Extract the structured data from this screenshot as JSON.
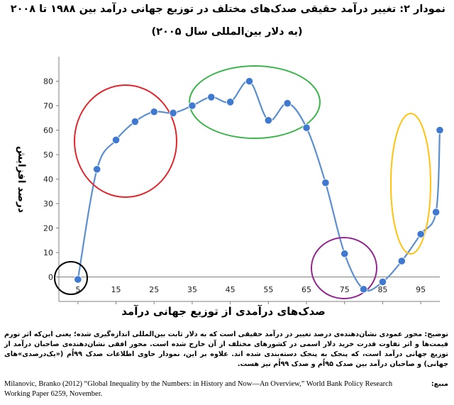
{
  "header": {
    "title": "نمودار ۲: تغییر درآمد حقیقی صدک‌های مختلف در توزیع جهانی درآمد بین ۱۹۸۸ تا ۲۰۰۸",
    "subtitle": "(به دلار بین‌المللی سال ۲۰۰۵)"
  },
  "chart_data": {
    "type": "line",
    "xlabel": "صدک‌های درآمدی از توزیع جهانی درآمد",
    "ylabel": "درصد افزایش",
    "xlim": [
      0,
      100
    ],
    "ylim": [
      -10,
      90
    ],
    "x_ticks": [
      5,
      15,
      25,
      35,
      45,
      55,
      65,
      75,
      85,
      95
    ],
    "y_ticks": [
      0,
      10,
      20,
      30,
      40,
      50,
      60,
      70,
      80
    ],
    "grid": false,
    "series": [
      {
        "x": [
          5,
          10,
          15,
          20,
          25,
          30,
          35,
          40,
          45,
          50,
          55,
          60,
          65,
          70,
          75,
          80,
          85,
          90,
          95,
          99,
          100
        ],
        "y": [
          -1,
          44,
          56,
          63.5,
          67.5,
          67,
          70,
          73.5,
          71.5,
          80,
          64,
          71,
          61,
          38.5,
          9.5,
          -5,
          -2,
          6.5,
          17.5,
          26.5,
          60
        ]
      }
    ],
    "highlights": [
      {
        "shape": "circle",
        "color": "#000000"
      },
      {
        "shape": "ellipse",
        "color": "#e0262b"
      },
      {
        "shape": "ellipse",
        "color": "#39b54a"
      },
      {
        "shape": "ellipse",
        "color": "#92278f"
      },
      {
        "shape": "ellipse",
        "color": "#ffc20e"
      }
    ],
    "line_color": "#5b8fd0",
    "marker_color": "#3f7ad0"
  },
  "note": {
    "text": "توضیح: محور عمودی نشان‌دهنده‌ی درصد تغییر در درآمد حقیقی است که به دلار ثابت بین‌المللی اندازه‌گیری شده؛ یعنی این‌که اثر تورم قیمت‌ها و اثر تفاوت قدرت خرید دلار اسمی در کشورهای مختلف از آن خارج شده است. محور افقی نشان‌دهنده‌ی صاحبان درآمد از توزیع جهانی درآمد است، که پنجک به پنجک دسته‌بندی شده اند. علاوه بر این، نمودار حاوی اطلاعات صدک ۹۹اُم («یک‌درصدی‌»های جهانی) و صاحبان درآمد بین صدک ۹۵اُم و صدک ۹۹اُم نیز هست."
  },
  "source": {
    "label": "منبع:",
    "text": "Milanovic, Branko (2012) “Global Inequality by the Numbers: in History and Now—An Overview,” World Bank Policy Research Working Paper 6259, November."
  }
}
